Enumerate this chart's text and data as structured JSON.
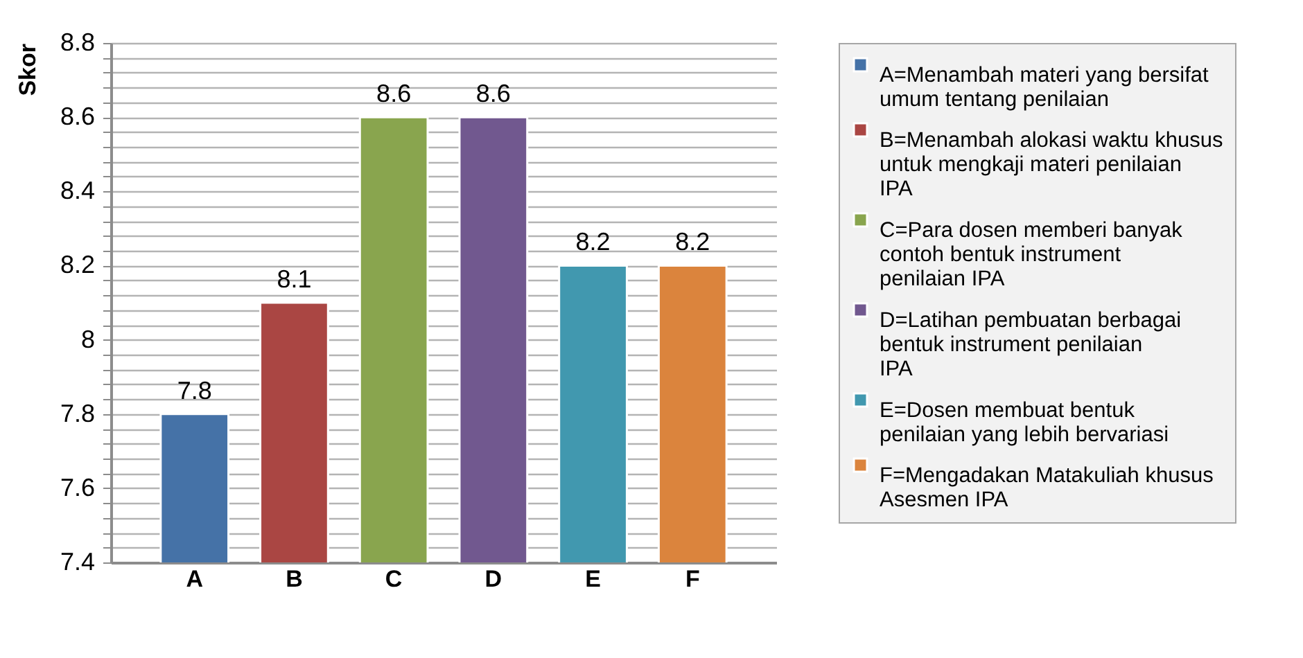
{
  "chart_data": {
    "type": "bar",
    "ylabel": "Skor",
    "categories": [
      "A",
      "B",
      "C",
      "D",
      "E",
      "F"
    ],
    "series": [
      {
        "name": "A=Menambah materi yang bersifat umum tentang penilaian",
        "color": "#4572a7",
        "values": [
          7.8,
          null,
          null,
          null,
          null,
          null
        ]
      },
      {
        "name": "B=Menambah alokasi waktu khusus untuk mengkaji materi penilaian IPA",
        "color": "#aa4643",
        "values": [
          null,
          8.1,
          null,
          null,
          null,
          null
        ]
      },
      {
        "name": "C=Para dosen memberi banyak contoh bentuk instrument penilaian IPA",
        "color": "#89a54e",
        "values": [
          null,
          null,
          8.6,
          null,
          null,
          null
        ]
      },
      {
        "name": "D=Latihan pembuatan berbagai bentuk  instrument penilaian IPA",
        "color": "#71588f",
        "values": [
          null,
          null,
          null,
          8.6,
          null,
          null
        ]
      },
      {
        "name": "E=Dosen membuat bentuk penilaian yang lebih bervariasi",
        "color": "#4198af",
        "values": [
          null,
          null,
          null,
          null,
          8.2,
          null
        ]
      },
      {
        "name": "F=Mengadakan Matakuliah khusus Asesmen IPA",
        "color": "#db843d",
        "values": [
          null,
          null,
          null,
          null,
          null,
          8.2
        ]
      }
    ],
    "ylim": [
      7.4,
      8.8
    ],
    "yticks": [
      7.4,
      {
        "value": 7.44,
        "label": null
      },
      {
        "value": 7.48,
        "label": null
      },
      {
        "value": 7.52,
        "label": null
      },
      {
        "value": 7.56,
        "label": null
      },
      7.6,
      {
        "value": 7.64,
        "label": null
      },
      {
        "value": 7.68,
        "label": null
      },
      {
        "value": 7.72,
        "label": null
      },
      {
        "value": 7.76,
        "label": null
      },
      7.8,
      {
        "value": 7.84,
        "label": null
      },
      {
        "value": 7.88,
        "label": null
      },
      {
        "value": 7.92,
        "label": null
      },
      {
        "value": 7.96,
        "label": null
      },
      8,
      {
        "value": 8.04,
        "label": null
      },
      {
        "value": 8.08,
        "label": null
      },
      {
        "value": 8.12,
        "label": null
      },
      {
        "value": 8.16,
        "label": null
      },
      8.2,
      {
        "value": 8.24,
        "label": null
      },
      {
        "value": 8.28,
        "label": null
      },
      {
        "value": 8.32,
        "label": null
      },
      {
        "value": 8.36,
        "label": null
      },
      8.4,
      {
        "value": 8.44,
        "label": null
      },
      {
        "value": 8.48,
        "label": null
      },
      {
        "value": 8.52,
        "label": null
      },
      {
        "value": 8.56,
        "label": null
      },
      8.6,
      {
        "value": 8.64,
        "label": null
      },
      {
        "value": 8.68,
        "label": null
      },
      {
        "value": 8.72,
        "label": null
      },
      {
        "value": 8.76,
        "label": null
      },
      8.8
    ],
    "grid": true,
    "legend": "right",
    "data_labels": true
  }
}
